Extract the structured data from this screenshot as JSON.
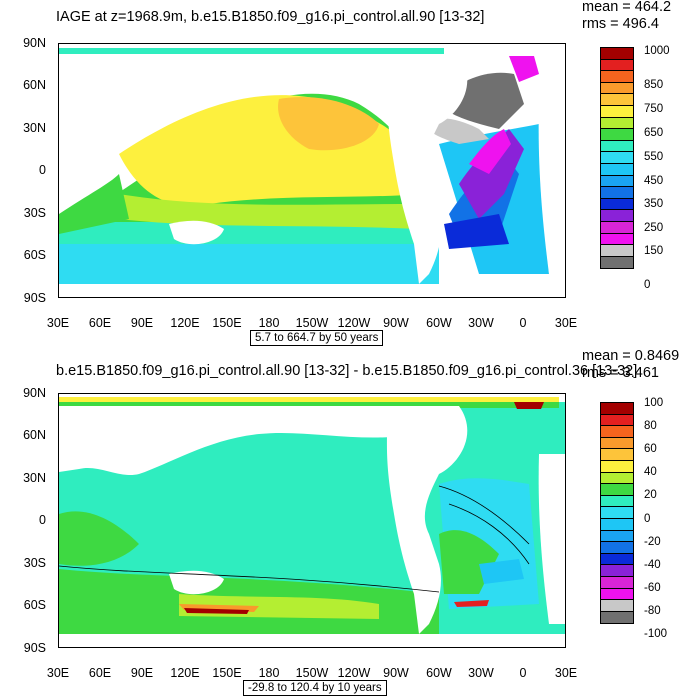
{
  "top": {
    "title": "IAGE at z=1968.9m, b.e15.B1850.f09_g16.pi_control.all.90 [13-32]",
    "mean": "mean = 464.2",
    "rms": "rms = 496.4",
    "info": "5.7 to 664.7 by 50 years",
    "colorbar_labels": [
      "1000",
      "850",
      "750",
      "650",
      "550",
      "450",
      "350",
      "250",
      "150",
      "0"
    ],
    "colorbar_colors": [
      "#a30000",
      "#e32020",
      "#f5641e",
      "#f99a2c",
      "#fdc43a",
      "#fdf03e",
      "#b4ee32",
      "#3ed942",
      "#2fedbf",
      "#2fdcf2",
      "#1ec6f5",
      "#1aa4f2",
      "#1272e6",
      "#0a2bd9",
      "#8a22d8",
      "#d825d6",
      "#ef12ef",
      "#c8c8c8",
      "#707070"
    ]
  },
  "bottom": {
    "title": "b.e15.B1850.f09_g16.pi_control.all.90 [13-32] - b.e15.B1850.f09_g16.pi_control.36 [13-32]",
    "mean": "mean = 0.8469",
    "rms": "rms = 3.461",
    "info": "-29.8 to 120.4 by 10 years",
    "colorbar_labels": [
      "100",
      "80",
      "60",
      "40",
      "20",
      "0",
      "-20",
      "-40",
      "-60",
      "-80",
      "-100"
    ],
    "colorbar_colors": [
      "#a30000",
      "#e32020",
      "#f5641e",
      "#f99a2c",
      "#fdc43a",
      "#fdf03e",
      "#b4ee32",
      "#3ed942",
      "#2fedbf",
      "#2fdcf2",
      "#1ec6f5",
      "#1aa4f2",
      "#1272e6",
      "#0a2bd9",
      "#8a22d8",
      "#d825d6",
      "#ef12ef",
      "#c8c8c8",
      "#707070"
    ]
  },
  "axes": {
    "lat_labels": [
      "90N",
      "60N",
      "30N",
      "0",
      "30S",
      "60S",
      "90S"
    ],
    "lon_labels": [
      "30E",
      "60E",
      "90E",
      "120E",
      "150E",
      "180",
      "150W",
      "120W",
      "90W",
      "60W",
      "30W",
      "0",
      "30E"
    ]
  }
}
